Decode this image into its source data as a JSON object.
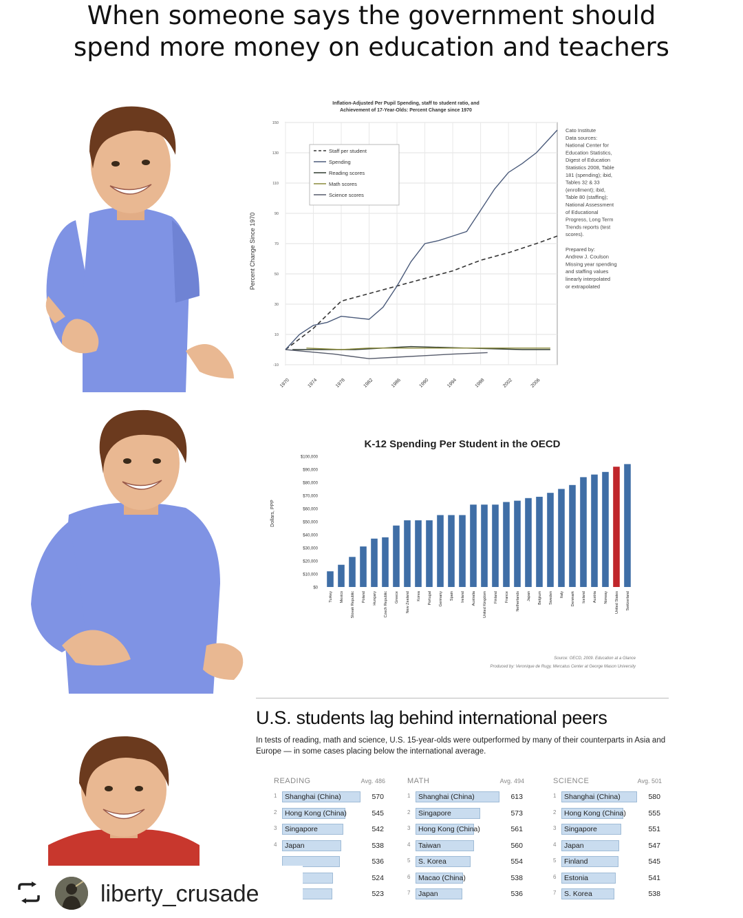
{
  "caption": {
    "line1": "When someone says the government should",
    "line2": "spend more money on education and teachers"
  },
  "chart_data": [
    {
      "type": "line",
      "title": "Inflation-Adjusted Per Pupil Spending, staff to student ratio, and Achievement of 17-Year-Olds: Percent Change since 1970",
      "title_line1": "Inflation-Adjusted Per Pupil Spending, staff to student ratio, and",
      "title_line2": "Achievement of 17-Year-Olds: Percent Change since 1970",
      "ylabel": "Percent Change Since 1970",
      "xlabel": "",
      "y_ticks": [
        "150",
        "130",
        "110",
        "90",
        "70",
        "50",
        "30",
        "10",
        "-10"
      ],
      "ylim": [
        -10,
        150
      ],
      "x_ticks": [
        "1970",
        "1974",
        "1978",
        "1982",
        "1986",
        "1990",
        "1994",
        "1998",
        "2002",
        "2006"
      ],
      "xlim": [
        1970,
        2009
      ],
      "legend_position": "top-left",
      "grid": true,
      "series": [
        {
          "name": "Staff per student",
          "style": "dashed",
          "color": "#333333",
          "x": [
            1970,
            1974,
            1978,
            1982,
            1986,
            1990,
            1994,
            1998,
            2002,
            2006,
            2009
          ],
          "y": [
            0,
            14,
            32,
            37,
            42,
            47,
            52,
            59,
            64,
            70,
            75
          ]
        },
        {
          "name": "Spending",
          "style": "solid",
          "color": "#4a5a7a",
          "x": [
            1970,
            1972,
            1974,
            1976,
            1978,
            1980,
            1982,
            1984,
            1986,
            1988,
            1990,
            1992,
            1994,
            1996,
            1998,
            2000,
            2002,
            2004,
            2006,
            2008,
            2009
          ],
          "y": [
            0,
            10,
            16,
            18,
            22,
            21,
            20,
            28,
            42,
            58,
            70,
            72,
            75,
            78,
            92,
            106,
            117,
            123,
            130,
            140,
            145
          ]
        },
        {
          "name": "Reading scores",
          "style": "solid",
          "color": "#2f3a2f",
          "x": [
            1971,
            1980,
            1988,
            1996,
            2004,
            2008
          ],
          "y": [
            0,
            0,
            2,
            1,
            0,
            0
          ]
        },
        {
          "name": "Math scores",
          "style": "solid",
          "color": "#8a8a3a",
          "x": [
            1973,
            1978,
            1982,
            1986,
            1990,
            1996,
            2004,
            2008
          ],
          "y": [
            1,
            0,
            1,
            1,
            1,
            1,
            1,
            1
          ]
        },
        {
          "name": "Science scores",
          "style": "solid",
          "color": "#555a6a",
          "x": [
            1970,
            1977,
            1982,
            1986,
            1990,
            1994,
            1999
          ],
          "y": [
            0,
            -3,
            -6,
            -5,
            -4,
            -3,
            -2
          ]
        }
      ],
      "notes": [
        "Cato Institute",
        "Data sources:",
        "National Center for",
        "Education Statistics,",
        "Digest of Education",
        "Statistics 2008, Table",
        "181 (spending); ibid,",
        "Tables 32 & 33",
        "(enrollment); ibid,",
        "Table 80 (staffing);",
        "National Assessment",
        "of Educational",
        "Progress, Long Term",
        "Trends reports (test",
        "scores).",
        "",
        "Prepared by:",
        "Andrew J. Coulson",
        "Missing year spending",
        "and staffing values",
        "linearly interpolated",
        "or extrapolated"
      ]
    },
    {
      "type": "bar",
      "title": "K-12 Spending Per Student in the OECD",
      "ylabel": "Dollars, PPP",
      "xlabel": "",
      "y_ticks": [
        "$100,000",
        "$90,000",
        "$80,000",
        "$70,000",
        "$60,000",
        "$50,000",
        "$40,000",
        "$30,000",
        "$20,000",
        "$10,000",
        "$0"
      ],
      "ylim": [
        0,
        100000
      ],
      "categories": [
        "Turkey",
        "Mexico",
        "Slovak Republic",
        "Poland",
        "Hungary",
        "Czech Republic",
        "Greece",
        "New Zealand",
        "Korea",
        "Portugal",
        "Germany",
        "Spain",
        "Ireland",
        "Australia",
        "United Kingdom",
        "Finland",
        "France",
        "Netherlands",
        "Japan",
        "Belgium",
        "Sweden",
        "Italy",
        "Denmark",
        "Iceland",
        "Austria",
        "Norway",
        "United States",
        "Switzerland"
      ],
      "values": [
        12000,
        17000,
        23000,
        31000,
        37000,
        38000,
        47000,
        51000,
        51000,
        51000,
        55000,
        55000,
        55000,
        63000,
        63000,
        63000,
        65000,
        66000,
        68000,
        69000,
        72000,
        75000,
        78000,
        84000,
        86000,
        88000,
        92000,
        94000
      ],
      "highlight": "United States",
      "bar_color": "#3f6ea6",
      "highlight_color": "#c0262b",
      "source_line1": "Source: OECD, 2009. Education at a Glance",
      "source_line2": "Produced by: Veronique de Rugy, Mercatus Center at George Mason University"
    },
    {
      "type": "table",
      "title": "U.S. students lag behind international peers",
      "description": "In tests of reading, math and science, U.S. 15-year-olds were outperformed by many of their counterparts in Asia and Europe — in some cases placing below the international average.",
      "columns": [
        {
          "name": "READING",
          "avg": "Avg. 486",
          "rows": [
            {
              "rank": "1",
              "country": "Shanghai (China)",
              "score": 570
            },
            {
              "rank": "2",
              "country": "Hong Kong (China)",
              "score": 545
            },
            {
              "rank": "3",
              "country": "Singapore",
              "score": 542
            },
            {
              "rank": "4",
              "country": "Japan",
              "score": 538
            },
            {
              "rank": "",
              "country": "",
              "score": 536
            },
            {
              "rank": "",
              "country": "",
              "score": 524
            },
            {
              "rank": "",
              "country": "",
              "score": 523
            }
          ]
        },
        {
          "name": "MATH",
          "avg": "Avg. 494",
          "rows": [
            {
              "rank": "1",
              "country": "Shanghai (China)",
              "score": 613
            },
            {
              "rank": "2",
              "country": "Singapore",
              "score": 573
            },
            {
              "rank": "3",
              "country": "Hong Kong (China)",
              "score": 561
            },
            {
              "rank": "4",
              "country": "Taiwan",
              "score": 560
            },
            {
              "rank": "5",
              "country": "S. Korea",
              "score": 554
            },
            {
              "rank": "6",
              "country": "Macao (China)",
              "score": 538
            },
            {
              "rank": "7",
              "country": "Japan",
              "score": 536
            }
          ]
        },
        {
          "name": "SCIENCE",
          "avg": "Avg. 501",
          "rows": [
            {
              "rank": "1",
              "country": "Shanghai (China)",
              "score": 580
            },
            {
              "rank": "2",
              "country": "Hong Kong (China)",
              "score": 555
            },
            {
              "rank": "3",
              "country": "Singapore",
              "score": 551
            },
            {
              "rank": "4",
              "country": "Japan",
              "score": 547
            },
            {
              "rank": "5",
              "country": "Finland",
              "score": 545
            },
            {
              "rank": "6",
              "country": "Estonia",
              "score": 541
            },
            {
              "rank": "7",
              "country": "S. Korea",
              "score": 538
            }
          ]
        }
      ]
    }
  ],
  "footer": {
    "username": "liberty_crusade",
    "repost_icon": "repost-icon",
    "avatar_icon": "avatar"
  },
  "colors": {
    "shirt_blue": "#7f93e4",
    "shirt_red": "#c8372d",
    "hair": "#6b3a1e",
    "skin": "#e9b892"
  }
}
